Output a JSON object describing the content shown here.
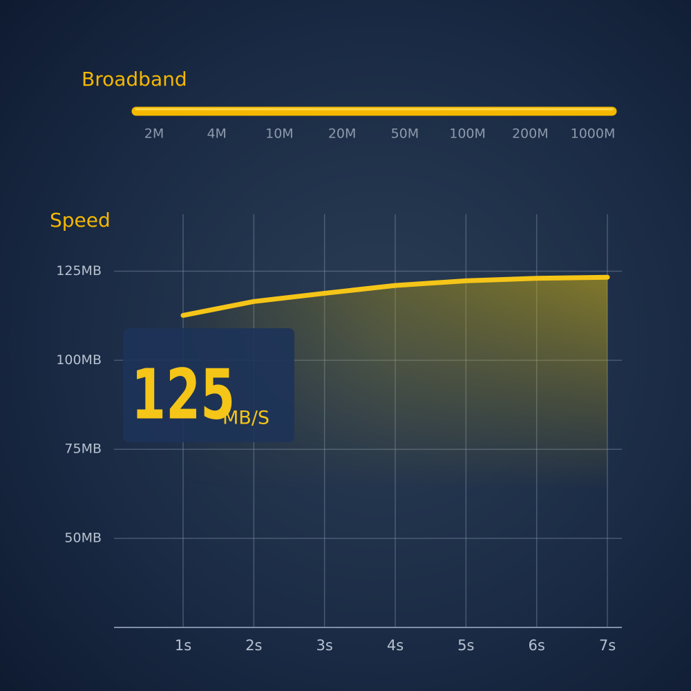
{
  "broadband": {
    "title": "Broadband",
    "labels": [
      "2M",
      "4M",
      "10M",
      "20M",
      "50M",
      "100M",
      "200M",
      "1000M"
    ]
  },
  "chart_data": {
    "type": "line",
    "ylabel": "Speed",
    "categories": [
      "1s",
      "2s",
      "3s",
      "4s",
      "5s",
      "6s",
      "7s"
    ],
    "series": [
      {
        "name": "Speed",
        "color": "#f5c518",
        "values": [
          112.6,
          116.5,
          118.8,
          121,
          122.3,
          123,
          123.3
        ]
      }
    ],
    "ylim": [
      25,
      141
    ],
    "yticks": [
      {
        "value": 50,
        "label": "50MB"
      },
      {
        "value": 75,
        "label": "75MB"
      },
      {
        "value": 100,
        "label": "100MB"
      },
      {
        "value": 125,
        "label": "125MB"
      }
    ],
    "grid": true,
    "callout": {
      "value": 125,
      "unit": "MB/S"
    }
  }
}
